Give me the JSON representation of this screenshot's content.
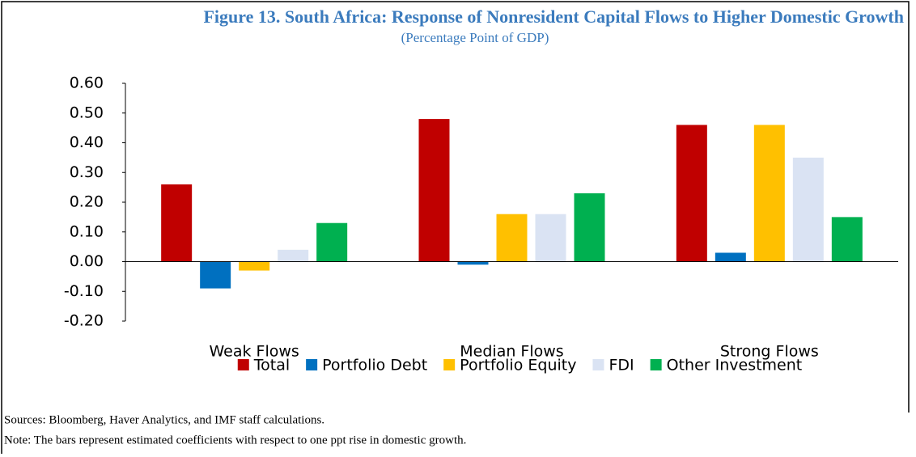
{
  "chart_data": {
    "type": "bar",
    "title": "Figure 13. South Africa: Response of Nonresident Capital Flows to Higher Domestic Growth",
    "subtitle": "(Percentage Point of GDP)",
    "categories": [
      "Weak Flows",
      "Median Flows",
      "Strong Flows"
    ],
    "series": [
      {
        "name": "Total",
        "color": "#c00000",
        "values": [
          0.26,
          0.48,
          0.46
        ]
      },
      {
        "name": "Portfolio Debt",
        "color": "#0070c0",
        "values": [
          -0.09,
          -0.01,
          0.03
        ]
      },
      {
        "name": "Portfolio Equity",
        "color": "#ffc000",
        "values": [
          -0.03,
          0.16,
          0.46
        ]
      },
      {
        "name": "FDI",
        "color": "#dae3f3",
        "values": [
          0.04,
          0.16,
          0.35
        ]
      },
      {
        "name": "Other Investment",
        "color": "#00b050",
        "values": [
          0.13,
          0.23,
          0.15
        ]
      }
    ],
    "ylim": [
      -0.2,
      0.6
    ],
    "yticks": [
      {
        "value": 0.6,
        "label": "0.60"
      },
      {
        "value": 0.5,
        "label": "0.50"
      },
      {
        "value": 0.4,
        "label": "0.40"
      },
      {
        "value": 0.3,
        "label": "0.30"
      },
      {
        "value": 0.2,
        "label": "0.20"
      },
      {
        "value": 0.1,
        "label": "0.10"
      },
      {
        "value": 0,
        "label": "0.00"
      },
      {
        "value": -0.1,
        "label": "-0.10"
      },
      {
        "value": -0.2,
        "label": "-0.20"
      }
    ],
    "grid": false,
    "legend": "bottom",
    "sources": "Sources: Bloomberg, Haver Analytics, and IMF staff calculations.",
    "note": "Note: The bars represent estimated coefficients with respect to one ppt rise in domestic growth."
  }
}
